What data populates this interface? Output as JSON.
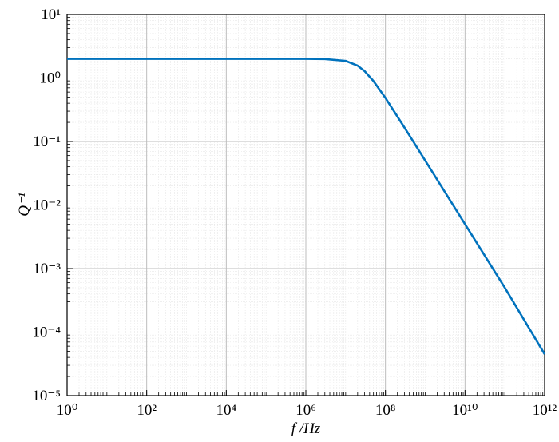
{
  "chart_data": {
    "type": "line",
    "x_label": "f /Hz",
    "y_label": "Q⁻¹",
    "x_scale": "log",
    "y_scale": "log",
    "x": [
      1,
      100,
      10000,
      1000000,
      3000000,
      10000000,
      20000000,
      30000000,
      50000000,
      100000000,
      300000000,
      1000000000,
      10000000000,
      100000000000,
      1000000000000
    ],
    "series": [
      {
        "name": "Q⁻¹",
        "color": "#0072bd",
        "values": [
          2,
          2,
          2,
          1.998,
          1.986,
          1.857,
          1.562,
          1.28,
          0.894,
          0.485,
          0.166,
          0.05,
          0.005,
          0.0005,
          4.5e-05
        ]
      }
    ],
    "xlim": [
      1,
      1000000000000
    ],
    "xticks": [
      {
        "value": 1,
        "label": "10⁰"
      },
      {
        "value": 100,
        "label": "10²"
      },
      {
        "value": 10000,
        "label": "10⁴"
      },
      {
        "value": 1000000,
        "label": "10⁶"
      },
      {
        "value": 100000000,
        "label": "10⁸"
      },
      {
        "value": 10000000000,
        "label": "10¹⁰"
      },
      {
        "value": 1000000000000,
        "label": "10¹²"
      }
    ],
    "ylim": [
      1e-05,
      10
    ],
    "yticks": [
      {
        "value": 1e-05,
        "label": "10⁻⁵"
      },
      {
        "value": 0.0001,
        "label": "10⁻⁴"
      },
      {
        "value": 0.001,
        "label": "10⁻³"
      },
      {
        "value": 0.01,
        "label": "10⁻²"
      },
      {
        "value": 0.1,
        "label": "10⁻¹"
      },
      {
        "value": 1,
        "label": "10⁰"
      },
      {
        "value": 10,
        "label": "10¹"
      }
    ],
    "grid": true,
    "minor_grid": true
  }
}
